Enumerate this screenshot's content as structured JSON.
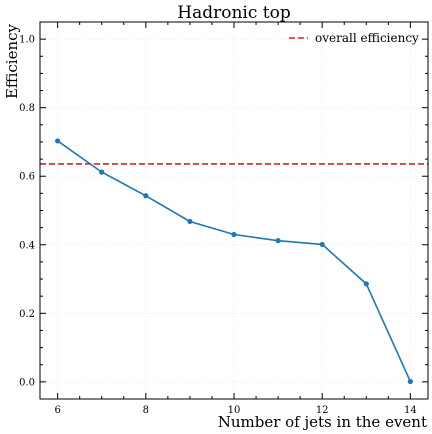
{
  "chart_data": {
    "type": "line",
    "title": "Hadronic top",
    "xlabel": "Number of jets in the event",
    "ylabel": "Efficiency",
    "xlim": [
      5.6,
      14.4
    ],
    "ylim": [
      -0.05,
      1.05
    ],
    "x_ticks": [
      6,
      8,
      10,
      12,
      14
    ],
    "y_ticks": [
      0.0,
      0.2,
      0.4,
      0.6,
      0.8,
      1.0
    ],
    "grid": true,
    "legend_position": "top-right",
    "series": [
      {
        "x": [
          6,
          7,
          8,
          9,
          10,
          11,
          12,
          13,
          14
        ],
        "values": [
          0.703,
          0.612,
          0.543,
          0.468,
          0.43,
          0.412,
          0.401,
          0.286,
          0.001
        ],
        "color": "#1f77b4"
      }
    ],
    "reference_lines": [
      {
        "name": "overall efficiency",
        "y": 0.636,
        "color": "#d62728",
        "style": "dashed"
      }
    ]
  }
}
